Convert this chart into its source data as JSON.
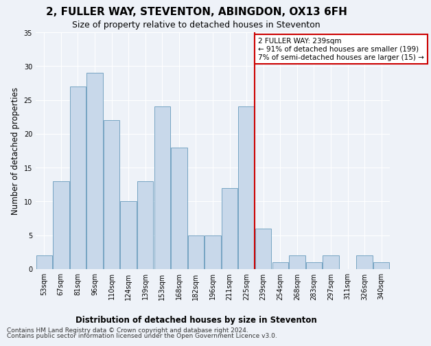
{
  "title": "2, FULLER WAY, STEVENTON, ABINGDON, OX13 6FH",
  "subtitle": "Size of property relative to detached houses in Steventon",
  "xlabel": "Distribution of detached houses by size in Steventon",
  "ylabel": "Number of detached properties",
  "categories": [
    "53sqm",
    "67sqm",
    "81sqm",
    "96sqm",
    "110sqm",
    "124sqm",
    "139sqm",
    "153sqm",
    "168sqm",
    "182sqm",
    "196sqm",
    "211sqm",
    "225sqm",
    "239sqm",
    "254sqm",
    "268sqm",
    "283sqm",
    "297sqm",
    "311sqm",
    "326sqm",
    "340sqm"
  ],
  "values": [
    2,
    13,
    27,
    29,
    22,
    10,
    13,
    24,
    18,
    5,
    5,
    12,
    24,
    6,
    1,
    2,
    1,
    2,
    0,
    2,
    1
  ],
  "bar_color": "#c8d8ea",
  "bar_edge_color": "#6699bb",
  "background_color": "#eef2f8",
  "grid_color": "#ffffff",
  "vline_x_index": 12,
  "vline_color": "#cc0000",
  "annotation_text": "2 FULLER WAY: 239sqm\n← 91% of detached houses are smaller (199)\n7% of semi-detached houses are larger (15) →",
  "annotation_box_color": "#cc0000",
  "ylim": [
    0,
    35
  ],
  "yticks": [
    0,
    5,
    10,
    15,
    20,
    25,
    30,
    35
  ],
  "footer_line1": "Contains HM Land Registry data © Crown copyright and database right 2024.",
  "footer_line2": "Contains public sector information licensed under the Open Government Licence v3.0.",
  "title_fontsize": 11,
  "subtitle_fontsize": 9,
  "axis_label_fontsize": 8.5,
  "tick_fontsize": 7,
  "annotation_fontsize": 7.5,
  "footer_fontsize": 6.5
}
